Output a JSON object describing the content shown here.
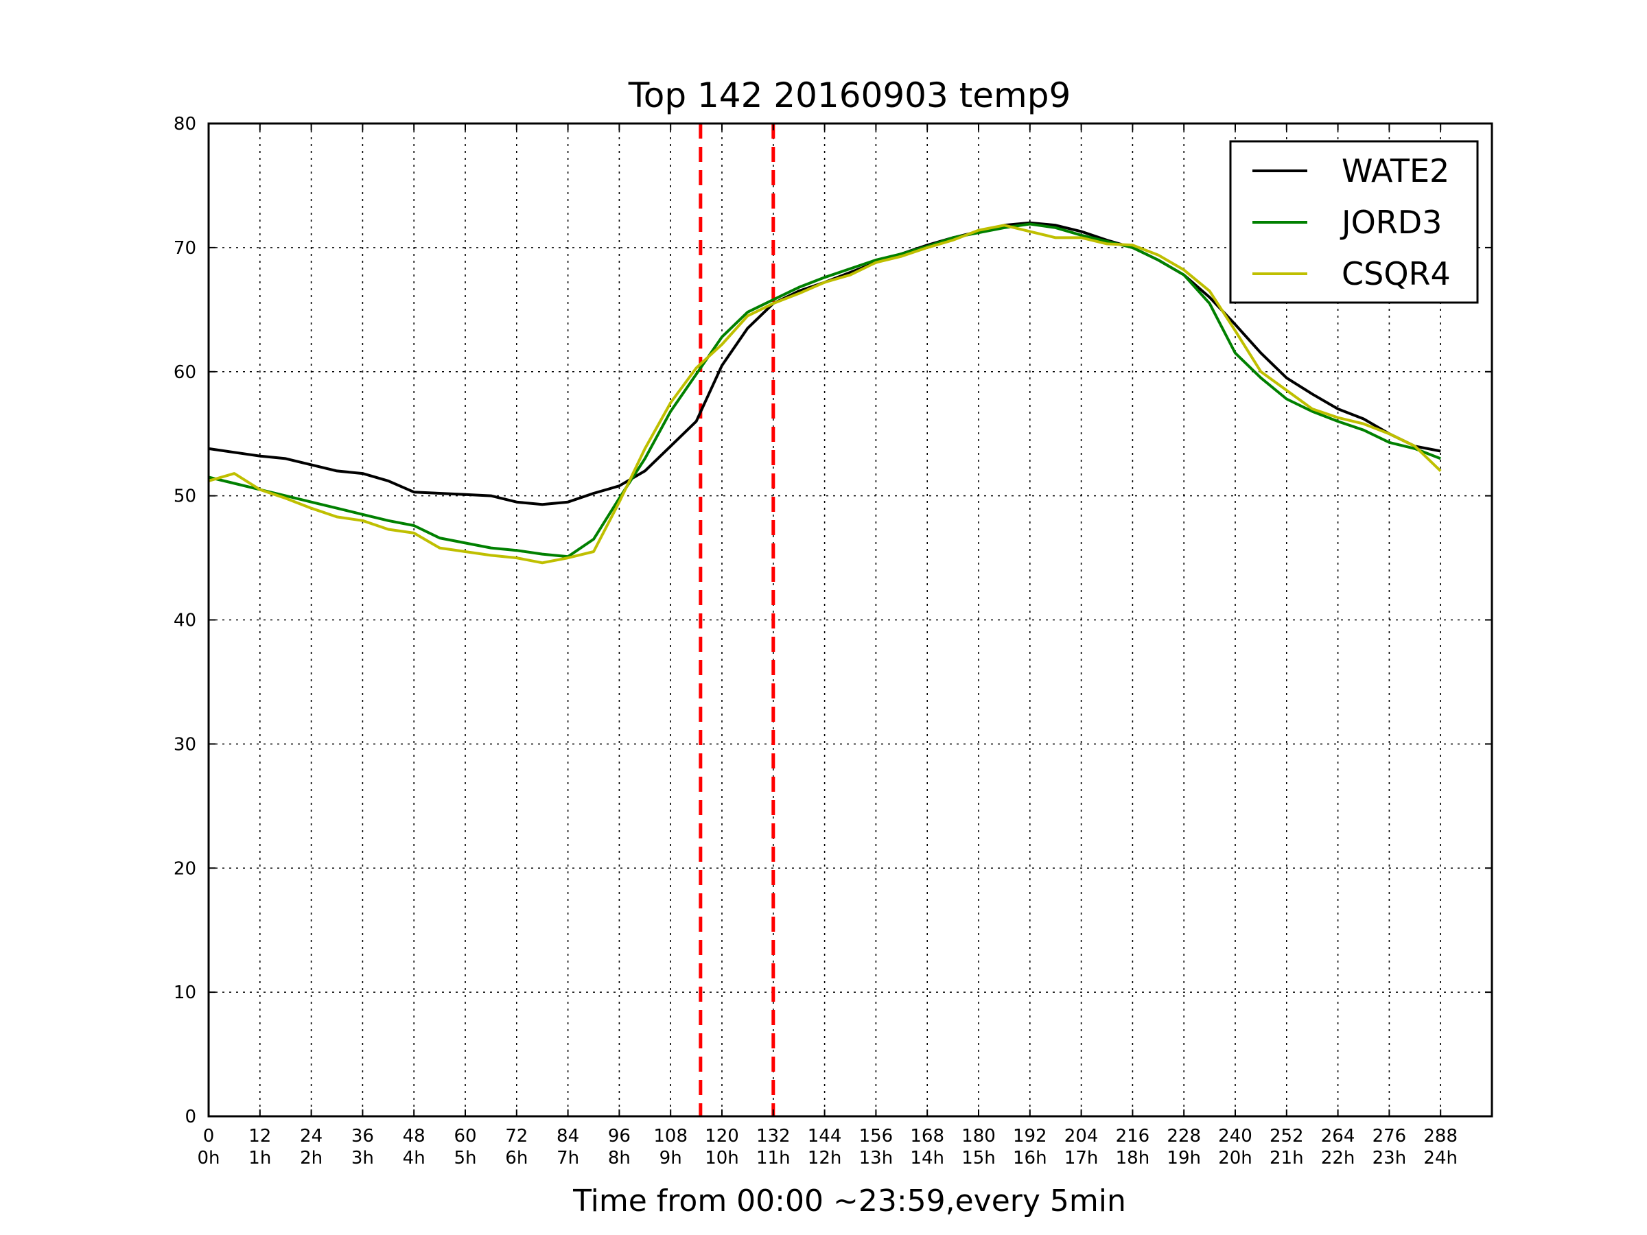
{
  "chart_data": {
    "type": "line",
    "title": "Top 142 20160903 temp9",
    "xlabel": "Time from 00:00 ~23:59,every 5min",
    "ylabel": "",
    "xlim": [
      0,
      300
    ],
    "ylim": [
      0,
      80
    ],
    "grid": true,
    "legend_position": "top-right",
    "x_ticks": [
      0,
      12,
      24,
      36,
      48,
      60,
      72,
      84,
      96,
      108,
      120,
      132,
      144,
      156,
      168,
      180,
      192,
      204,
      216,
      228,
      240,
      252,
      264,
      276,
      288
    ],
    "x_tick_labels_hours": [
      "0h",
      "1h",
      "2h",
      "3h",
      "4h",
      "5h",
      "6h",
      "7h",
      "8h",
      "9h",
      "10h",
      "11h",
      "12h",
      "13h",
      "14h",
      "15h",
      "16h",
      "17h",
      "18h",
      "19h",
      "20h",
      "21h",
      "22h",
      "23h",
      "24h"
    ],
    "y_ticks": [
      0,
      10,
      20,
      30,
      40,
      50,
      60,
      70,
      80
    ],
    "vertical_markers": [
      {
        "x": 115,
        "color": "#ff0000",
        "style": "dashed"
      },
      {
        "x": 132,
        "color": "#ff0000",
        "style": "dashed"
      }
    ],
    "series": [
      {
        "name": "WATE2",
        "color": "#000000",
        "x": [
          0,
          6,
          12,
          18,
          24,
          30,
          36,
          42,
          48,
          54,
          60,
          66,
          72,
          78,
          84,
          90,
          96,
          102,
          108,
          114,
          120,
          126,
          132,
          138,
          144,
          150,
          156,
          162,
          168,
          174,
          180,
          186,
          192,
          198,
          204,
          210,
          216,
          222,
          228,
          234,
          240,
          246,
          252,
          258,
          264,
          270,
          276,
          282,
          288
        ],
        "values": [
          53.8,
          53.5,
          53.2,
          53.0,
          52.5,
          52.0,
          51.8,
          51.2,
          50.3,
          50.2,
          50.1,
          50.0,
          49.5,
          49.3,
          49.5,
          50.2,
          50.8,
          52.0,
          54.0,
          56.0,
          60.5,
          63.5,
          65.5,
          66.5,
          67.2,
          68.0,
          68.8,
          69.5,
          70.2,
          70.8,
          71.3,
          71.8,
          72.0,
          71.8,
          71.3,
          70.6,
          70.0,
          69.0,
          67.8,
          66.0,
          63.8,
          61.5,
          59.5,
          58.2,
          57.0,
          56.2,
          55.0,
          54.0,
          53.6
        ]
      },
      {
        "name": "JORD3",
        "color": "#008000",
        "x": [
          0,
          6,
          12,
          18,
          24,
          30,
          36,
          42,
          48,
          54,
          60,
          66,
          72,
          78,
          84,
          90,
          96,
          102,
          108,
          114,
          120,
          126,
          132,
          138,
          144,
          150,
          156,
          162,
          168,
          174,
          180,
          186,
          192,
          198,
          204,
          210,
          216,
          222,
          228,
          234,
          240,
          246,
          252,
          258,
          264,
          270,
          276,
          282,
          288
        ],
        "values": [
          51.5,
          51.0,
          50.5,
          50.0,
          49.5,
          49.0,
          48.5,
          48.0,
          47.6,
          46.6,
          46.2,
          45.8,
          45.6,
          45.3,
          45.1,
          46.5,
          49.8,
          53.0,
          56.8,
          59.8,
          62.8,
          64.8,
          65.8,
          66.8,
          67.6,
          68.3,
          69.0,
          69.5,
          70.1,
          70.8,
          71.2,
          71.6,
          71.9,
          71.6,
          71.0,
          70.5,
          70.0,
          69.0,
          67.8,
          65.5,
          61.5,
          59.5,
          57.8,
          56.8,
          56.0,
          55.3,
          54.3,
          53.8,
          53.0
        ]
      },
      {
        "name": "CSQR4",
        "color": "#bfbf00",
        "x": [
          0,
          6,
          12,
          18,
          24,
          30,
          36,
          42,
          48,
          54,
          60,
          66,
          72,
          78,
          84,
          90,
          96,
          102,
          108,
          114,
          120,
          126,
          132,
          138,
          144,
          150,
          156,
          162,
          168,
          174,
          180,
          186,
          192,
          198,
          204,
          210,
          216,
          222,
          228,
          234,
          240,
          246,
          252,
          258,
          264,
          270,
          276,
          282,
          288
        ],
        "values": [
          51.2,
          51.8,
          50.5,
          49.8,
          49.0,
          48.3,
          48.0,
          47.3,
          47.0,
          45.8,
          45.5,
          45.2,
          45.0,
          44.6,
          45.0,
          45.5,
          49.5,
          53.8,
          57.5,
          60.3,
          62.2,
          64.5,
          65.5,
          66.3,
          67.2,
          67.8,
          68.8,
          69.3,
          70.0,
          70.6,
          71.4,
          71.8,
          71.3,
          70.8,
          70.8,
          70.3,
          70.2,
          69.4,
          68.2,
          66.5,
          63.3,
          60.0,
          58.5,
          57.0,
          56.3,
          55.8,
          55.0,
          54.0,
          52.0
        ]
      }
    ]
  }
}
